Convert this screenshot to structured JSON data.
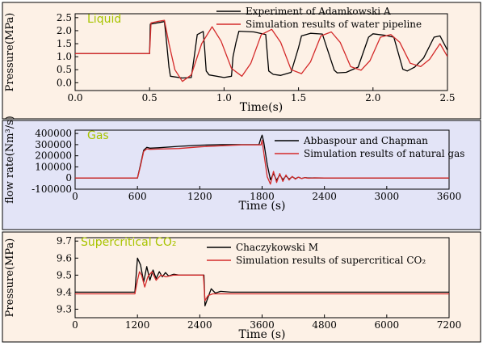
{
  "chart_data": [
    {
      "type": "line",
      "panel_label": "Liquid",
      "xlabel": "Time(s)",
      "ylabel": "Pressure(MPa)",
      "xlim": [
        0,
        2.5
      ],
      "ylim": [
        -0.3,
        2.65
      ],
      "xticks": [
        "0.0",
        "0.5",
        "1.0",
        "1.5",
        "2.0",
        "2.5"
      ],
      "yticks": [
        "0.0",
        "0.5",
        "1.0",
        "1.5",
        "2.0",
        "2.5"
      ],
      "legend_placement": "top-right",
      "background": "#fdf1e6",
      "series": [
        {
          "name": "Experiment of Adamkowski A",
          "color": "#000000",
          "x": [
            0.0,
            0.5,
            0.505,
            0.6,
            0.615,
            0.63,
            0.64,
            0.72,
            0.78,
            0.8,
            0.82,
            0.86,
            0.87,
            0.88,
            0.9,
            1.0,
            1.05,
            1.06,
            1.08,
            1.1,
            1.2,
            1.28,
            1.3,
            1.33,
            1.38,
            1.45,
            1.5,
            1.52,
            1.58,
            1.66,
            1.74,
            1.76,
            1.82,
            1.9,
            1.97,
            2.0,
            2.08,
            2.14,
            2.2,
            2.23,
            2.28,
            2.34,
            2.41,
            2.45,
            2.5
          ],
          "y": [
            1.12,
            1.12,
            2.25,
            2.35,
            1.5,
            0.6,
            0.25,
            0.18,
            0.2,
            1.0,
            1.85,
            1.97,
            1.3,
            0.45,
            0.3,
            0.2,
            0.25,
            1.0,
            1.55,
            1.98,
            1.95,
            1.85,
            0.45,
            0.32,
            0.28,
            0.4,
            1.35,
            1.8,
            1.9,
            1.87,
            0.48,
            0.38,
            0.4,
            0.6,
            1.75,
            1.88,
            1.82,
            1.75,
            0.52,
            0.45,
            0.6,
            0.95,
            1.75,
            1.8,
            1.25
          ]
        },
        {
          "name": "Simulation results of water pipeline",
          "color": "#d42a2a",
          "x": [
            0.0,
            0.5,
            0.51,
            0.55,
            0.6,
            0.63,
            0.67,
            0.72,
            0.78,
            0.85,
            0.92,
            0.98,
            1.05,
            1.12,
            1.18,
            1.25,
            1.32,
            1.38,
            1.45,
            1.52,
            1.58,
            1.65,
            1.72,
            1.78,
            1.85,
            1.92,
            1.98,
            2.05,
            2.12,
            2.18,
            2.25,
            2.32,
            2.38,
            2.45,
            2.5
          ],
          "y": [
            1.12,
            1.12,
            2.3,
            2.35,
            2.4,
            1.5,
            0.5,
            0.05,
            0.3,
            1.5,
            2.15,
            1.6,
            0.55,
            0.25,
            0.75,
            1.85,
            2.05,
            1.55,
            0.5,
            0.35,
            0.8,
            1.8,
            1.95,
            1.55,
            0.62,
            0.48,
            0.85,
            1.75,
            1.85,
            1.55,
            0.75,
            0.62,
            0.9,
            1.5,
            1.0
          ]
        }
      ]
    },
    {
      "type": "line",
      "panel_label": "Gas",
      "xlabel": "Time (s)",
      "ylabel": "flow rate(Nm³/s)",
      "xlim": [
        0,
        3600
      ],
      "ylim": [
        -100000,
        430000
      ],
      "xticks": [
        "0",
        "600",
        "1200",
        "1800",
        "2400",
        "3000",
        "3600"
      ],
      "yticks": [
        "-100000",
        "0",
        "100000",
        "200000",
        "300000",
        "400000"
      ],
      "legend_placement": "top-right",
      "background": "#e3e4f7",
      "series": [
        {
          "name": "Abbaspour and Chapman",
          "color": "#000000",
          "x": [
            0,
            600,
            630,
            660,
            690,
            720,
            800,
            1000,
            1200,
            1400,
            1600,
            1770,
            1790,
            1800,
            1815,
            1850,
            1880,
            1910,
            1940,
            1970,
            2000,
            2030,
            2060,
            2090,
            2120,
            2150,
            2180,
            2210,
            2250,
            2300,
            2400,
            3600
          ],
          "y": [
            0,
            0,
            120000,
            250000,
            275000,
            268000,
            272000,
            285000,
            295000,
            300000,
            300000,
            300000,
            360000,
            385000,
            330000,
            120000,
            -15000,
            40000,
            -20000,
            30000,
            -15000,
            20000,
            -10000,
            12000,
            -6000,
            8000,
            -4000,
            4000,
            0,
            2000,
            0,
            0
          ]
        },
        {
          "name": "Simulation results of natural gas",
          "color": "#d42a2a",
          "x": [
            0,
            600,
            630,
            660,
            690,
            720,
            800,
            1000,
            1200,
            1400,
            1600,
            1790,
            1800,
            1820,
            1850,
            1880,
            1910,
            1940,
            1970,
            2000,
            2030,
            2060,
            2090,
            2120,
            2150,
            2180,
            2210,
            2250,
            2300,
            2400,
            3600
          ],
          "y": [
            0,
            0,
            110000,
            240000,
            262000,
            258000,
            260000,
            265000,
            280000,
            290000,
            298000,
            298000,
            340000,
            200000,
            10000,
            -55000,
            60000,
            -40000,
            40000,
            -30000,
            28000,
            -18000,
            15000,
            -10000,
            8000,
            -5000,
            4000,
            -2000,
            1500,
            0,
            0
          ]
        }
      ]
    },
    {
      "type": "line",
      "panel_label": "Supercritical CO₂",
      "xlabel": "Time (s)",
      "ylabel": "Pressure(MPa)",
      "xlim": [
        0,
        7200
      ],
      "ylim": [
        9.25,
        9.72
      ],
      "xticks": [
        "0",
        "1200",
        "2400",
        "3600",
        "4800",
        "6000",
        "7200"
      ],
      "yticks": [
        "9.3",
        "9.4",
        "9.5",
        "9.6",
        "9.7"
      ],
      "legend_placement": "top-right",
      "background": "#fdf1e6",
      "series": [
        {
          "name": "Chaczykowski M",
          "color": "#000000",
          "x": [
            0,
            1150,
            1200,
            1260,
            1320,
            1380,
            1440,
            1500,
            1560,
            1620,
            1680,
            1740,
            1800,
            1900,
            2000,
            2200,
            2400,
            2480,
            2500,
            2560,
            2620,
            2700,
            2800,
            3000,
            7200
          ],
          "y": [
            9.4,
            9.4,
            9.6,
            9.56,
            9.46,
            9.55,
            9.47,
            9.53,
            9.48,
            9.52,
            9.49,
            9.515,
            9.495,
            9.505,
            9.5,
            9.5,
            9.5,
            9.5,
            9.32,
            9.37,
            9.42,
            9.395,
            9.405,
            9.4,
            9.4
          ]
        },
        {
          "name": "Simulation results of supercritical CO₂",
          "color": "#d42a2a",
          "x": [
            0,
            1150,
            1200,
            1240,
            1280,
            1340,
            1400,
            1480,
            1560,
            1650,
            1750,
            1900,
            2100,
            2400,
            2470,
            2500,
            2560,
            2650,
            2800,
            3200,
            7200
          ],
          "y": [
            9.39,
            9.39,
            9.47,
            9.52,
            9.5,
            9.43,
            9.49,
            9.52,
            9.47,
            9.5,
            9.49,
            9.5,
            9.5,
            9.5,
            9.5,
            9.35,
            9.38,
            9.39,
            9.39,
            9.39,
            9.39
          ]
        }
      ]
    }
  ]
}
